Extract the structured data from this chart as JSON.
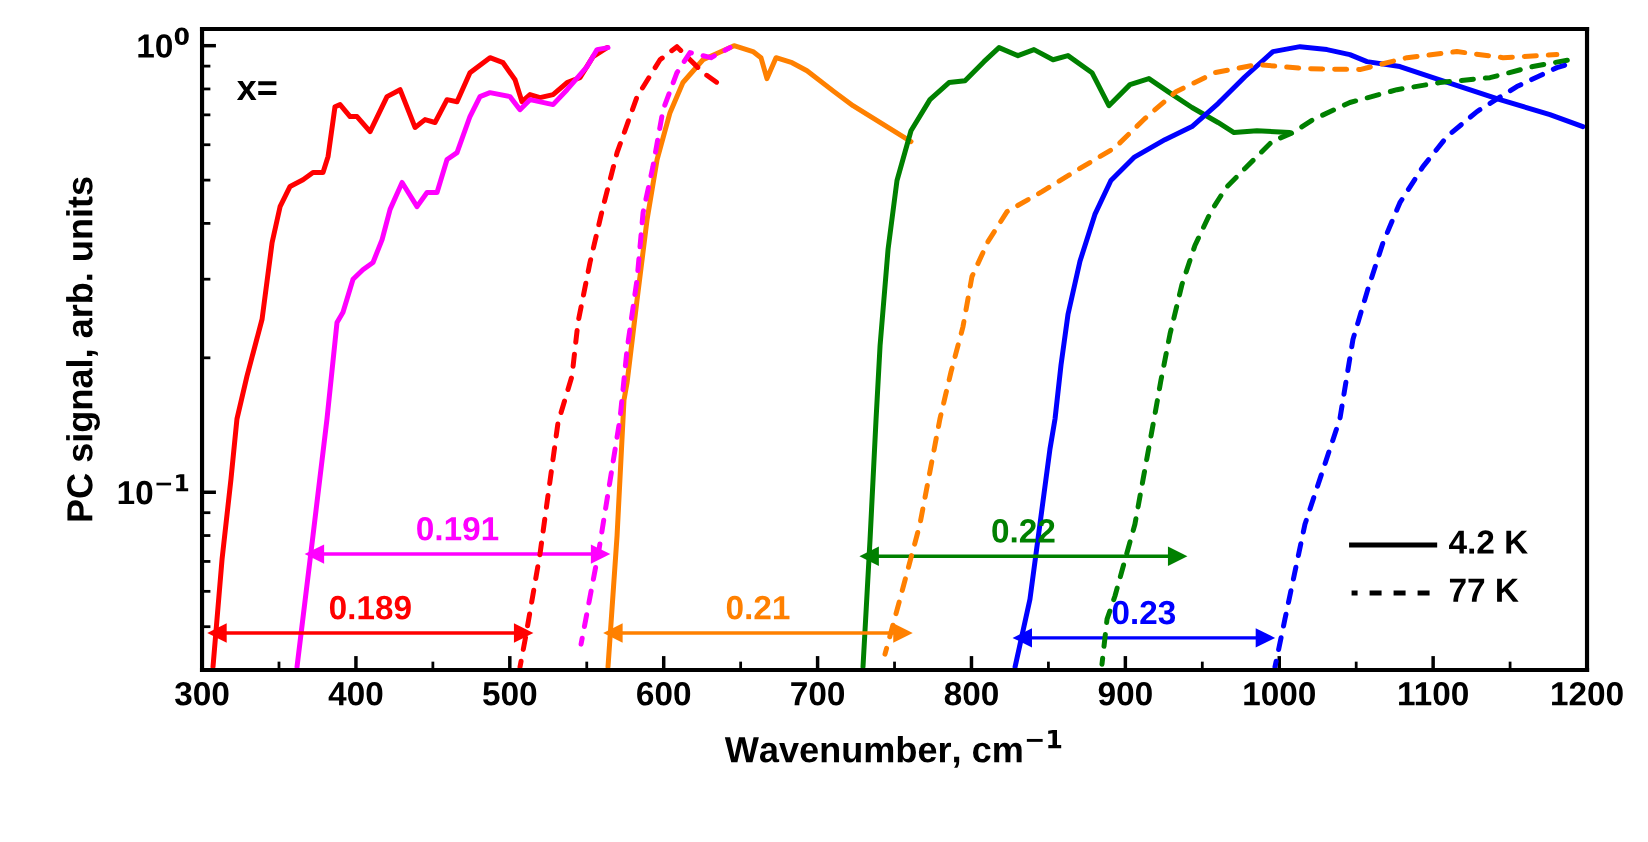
{
  "chart_data": {
    "type": "line",
    "xlabel": "Wavenumber, cm$^{−1}$",
    "ylabel": "PC signal, arb. units",
    "log": "y",
    "xlim": [
      300,
      1200
    ],
    "xticks": [
      300,
      400,
      500,
      600,
      700,
      800,
      900,
      1000,
      1100,
      1200
    ],
    "ylim": [
      0.04,
      1.09
    ],
    "yticks": [
      {
        "value": 0.1,
        "label": "10$^{−1}$"
      },
      {
        "value": 1,
        "label": "10$^{0}$"
      }
    ],
    "grid": false,
    "marker": "none",
    "series": [
      {
        "color": "#ff0000",
        "line_style": "solid",
        "x": [
          307.1,
          313.0,
          318.8,
          322.7,
          329.2,
          339.0,
          345.5,
          350.7,
          357.2,
          365.6,
          372.1,
          378.6,
          381.9,
          386.4,
          389.7,
          396.2,
          400.7,
          409.2,
          420.2,
          428.7,
          438.4,
          444.9,
          451.4,
          459.2,
          465.7,
          474.1,
          487.1,
          495.6,
          503.4,
          507.9,
          513.1,
          519.6,
          528.1,
          537.2,
          545.6,
          554.1,
          563.2
        ],
        "values": [
          0.0406,
          0.0708,
          0.107,
          0.146,
          0.182,
          0.244,
          0.362,
          0.436,
          0.484,
          0.501,
          0.52,
          0.52,
          0.565,
          0.73,
          0.738,
          0.694,
          0.694,
          0.642,
          0.769,
          0.797,
          0.656,
          0.683,
          0.673,
          0.757,
          0.749,
          0.87,
          0.94,
          0.916,
          0.839,
          0.749,
          0.777,
          0.765,
          0.777,
          0.827,
          0.848,
          0.945,
          0.99
        ]
      },
      {
        "color": "#ff0000",
        "line_style": "dashed",
        "x": [
          506.6,
          510.5,
          519.6,
          531.3,
          540.4,
          544.3,
          552.1,
          560.6,
          569.7,
          582.7,
          597.6,
          608.6,
          625.6,
          636.6
        ],
        "values": [
          0.0406,
          0.0479,
          0.0727,
          0.143,
          0.182,
          0.24,
          0.327,
          0.436,
          0.576,
          0.769,
          0.93,
          0.995,
          0.87,
          0.818
        ]
      },
      {
        "color": "#ff00ff",
        "line_style": "solid",
        "x": [
          361.7,
          372.1,
          381.2,
          387.7,
          391.6,
          398.1,
          404.5,
          411.1,
          417.0,
          422.2,
          430.0,
          439.7,
          446.2,
          452.7,
          459.2,
          465.7,
          474.1,
          480.6,
          487.1,
          500.1,
          506.6,
          513.1,
          528.1,
          537.2,
          550.2,
          556.7,
          563.8
        ],
        "values": [
          0.0406,
          0.08,
          0.146,
          0.24,
          0.253,
          0.3,
          0.315,
          0.327,
          0.368,
          0.43,
          0.494,
          0.436,
          0.469,
          0.469,
          0.556,
          0.576,
          0.694,
          0.769,
          0.785,
          0.769,
          0.719,
          0.757,
          0.738,
          0.797,
          0.898,
          0.98,
          0.99
        ]
      },
      {
        "color": "#ff00ff",
        "line_style": "dashed",
        "x": [
          546.3,
          558.0,
          571.6,
          576.2,
          582.7,
          586.6,
          593.0,
          599.6,
          608.6,
          617.1,
          630.7,
          643.1
        ],
        "values": [
          0.0457,
          0.0746,
          0.146,
          0.209,
          0.3,
          0.423,
          0.536,
          0.719,
          0.87,
          0.965,
          0.94,
          0.99
        ]
      },
      {
        "color": "#ff8000",
        "line_style": "solid",
        "x": [
          563.8,
          569.7,
          574.2,
          576.2,
          582.7,
          589.2,
          595.7,
          604.1,
          612.5,
          625.5,
          645.7,
          658.0,
          663.2,
          667.1,
          673.0,
          683.4,
          693.1,
          710.7,
          723.0,
          760.7
        ],
        "values": [
          0.0406,
          0.08,
          0.161,
          0.176,
          0.27,
          0.408,
          0.556,
          0.708,
          0.827,
          0.93,
          1.0,
          0.97,
          0.94,
          0.844,
          0.94,
          0.916,
          0.879,
          0.789,
          0.734,
          0.61
        ]
      },
      {
        "color": "#ff8000",
        "line_style": "dashed",
        "x": [
          743.8,
          753.5,
          766.5,
          779.5,
          786.7,
          794.5,
          800.3,
          810.7,
          823.1,
          845.8,
          870.5,
          893.2,
          912.7,
          932.9,
          958.2,
          985.5,
          1018.0,
          1052.4,
          1083.0,
          1115.5,
          1145.4,
          1180.4
        ],
        "values": [
          0.0434,
          0.0576,
          0.0848,
          0.146,
          0.186,
          0.235,
          0.304,
          0.364,
          0.425,
          0.471,
          0.531,
          0.591,
          0.687,
          0.789,
          0.87,
          0.907,
          0.888,
          0.884,
          0.94,
          0.97,
          0.94,
          0.955
        ]
      },
      {
        "color": "#008000",
        "line_style": "solid",
        "x": [
          729.5,
          734.1,
          738.0,
          740.6,
          745.8,
          751.6,
          760.7,
          773.0,
          785.4,
          795.8,
          808.1,
          817.9,
          830.2,
          840.6,
          853.0,
          862.7,
          878.3,
          889.3,
          903.0,
          915.3,
          927.7,
          943.3,
          960.2,
          970.6,
          985.5,
          1006.9
        ],
        "values": [
          0.0406,
          0.0785,
          0.146,
          0.213,
          0.35,
          0.499,
          0.645,
          0.757,
          0.827,
          0.835,
          0.921,
          0.99,
          0.95,
          0.98,
          0.93,
          0.95,
          0.87,
          0.734,
          0.818,
          0.844,
          0.789,
          0.727,
          0.673,
          0.639,
          0.645,
          0.639
        ]
      },
      {
        "color": "#008000",
        "line_style": "dashed",
        "x": [
          884.8,
          888.1,
          893.2,
          906.2,
          912.7,
          919.2,
          923.1,
          929.0,
          936.8,
          945.2,
          955.6,
          965.4,
          977.7,
          995.3,
          1008.9,
          1021.9,
          1045.9,
          1076.5,
          1104.4,
          1136.9,
          1164.8,
          1188.9
        ],
        "values": [
          0.0412,
          0.052,
          0.0585,
          0.0848,
          0.1126,
          0.1494,
          0.178,
          0.226,
          0.292,
          0.357,
          0.425,
          0.481,
          0.531,
          0.61,
          0.639,
          0.683,
          0.746,
          0.797,
          0.827,
          0.848,
          0.898,
          0.93
        ]
      },
      {
        "color": "#0000ff",
        "line_style": "solid",
        "x": [
          828.3,
          838.0,
          851.0,
          854.3,
          858.2,
          862.7,
          870.5,
          880.2,
          890.6,
          905.6,
          925.7,
          943.3,
          960.2,
          977.7,
          995.9,
          1013.5,
          1031.0,
          1045.9,
          1057.0,
          1078.4,
          1099.9,
          1143.4,
          1175.9,
          1197.3
        ],
        "values": [
          0.0406,
          0.0576,
          0.125,
          0.146,
          0.193,
          0.25,
          0.329,
          0.419,
          0.499,
          0.562,
          0.616,
          0.659,
          0.742,
          0.852,
          0.97,
          0.995,
          0.98,
          0.955,
          0.921,
          0.898,
          0.848,
          0.757,
          0.701,
          0.659
        ]
      },
      {
        "color": "#ff0000",
        "line_style": "solid",
        "marker": "triangle",
        "x": [
          309.7,
          509
        ],
        "values": [
          0.0484,
          0.0484
        ]
      },
      {
        "color": "#ff00ff",
        "line_style": "solid",
        "marker": "triangle",
        "x": [
          373,
          559
        ],
        "values": [
          0.0727,
          0.0727
        ]
      },
      {
        "color": "#ff8000",
        "line_style": "solid",
        "marker": "triangle",
        "x": [
          567,
          755.5
        ],
        "values": [
          0.0484,
          0.0484
        ]
      },
      {
        "color": "#008000",
        "line_style": "solid",
        "marker": "triangle",
        "x": [
          733.5,
          934
        ],
        "values": [
          0.0719,
          0.0719
        ]
      },
      {
        "color": "#0000ff",
        "line_style": "solid",
        "marker": "triangle",
        "x": [
          833,
          991
        ],
        "values": [
          0.0472,
          0.0472
        ]
      },
      {
        "color": "#0000ff",
        "line_style": "dashed",
        "x": [
          997.2,
          1003.7,
          1016.7,
          1026.4,
          1039.4,
          1047.9,
          1057.6,
          1067.4,
          1078.4,
          1093.4,
          1109.0,
          1128.5,
          1154.4,
          1180.4,
          1186.9
        ],
        "values": [
          0.0406,
          0.052,
          0.0848,
          0.107,
          0.146,
          0.22,
          0.285,
          0.362,
          0.445,
          0.536,
          0.626,
          0.712,
          0.81,
          0.893,
          0.907
        ]
      }
    ],
    "annotations": [
      "x=",
      "4.2 K",
      "77 K",
      "0.189",
      "0.191",
      "0.21",
      "0.22",
      "0.23"
    ]
  }
}
